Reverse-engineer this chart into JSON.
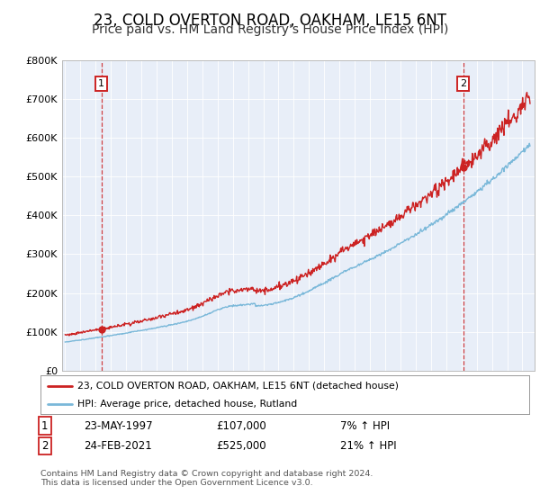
{
  "title": "23, COLD OVERTON ROAD, OAKHAM, LE15 6NT",
  "subtitle": "Price paid vs. HM Land Registry's House Price Index (HPI)",
  "title_fontsize": 12,
  "subtitle_fontsize": 10,
  "background_color": "#ffffff",
  "plot_bg_color": "#e8eef8",
  "sale1_date": "23-MAY-1997",
  "sale1_price": 107000,
  "sale1_hpi_pct": "7% ↑ HPI",
  "sale2_date": "24-FEB-2021",
  "sale2_price": 525000,
  "sale2_hpi_pct": "21% ↑ HPI",
  "legend_line1": "23, COLD OVERTON ROAD, OAKHAM, LE15 6NT (detached house)",
  "legend_line2": "HPI: Average price, detached house, Rutland",
  "footer": "Contains HM Land Registry data © Crown copyright and database right 2024.\nThis data is licensed under the Open Government Licence v3.0.",
  "hpi_color": "#7ab8d9",
  "price_color": "#cc2222",
  "dashed_line_color": "#cc2222",
  "ylabel_fontsize": 8,
  "xlabel_fontsize": 7.5,
  "ylim_max": 800000,
  "xlim_start": 1994.8,
  "xlim_end": 2025.8,
  "t1": 1997.37,
  "t2": 2021.12,
  "sale1_price_val": 107000,
  "sale2_price_val": 525000
}
